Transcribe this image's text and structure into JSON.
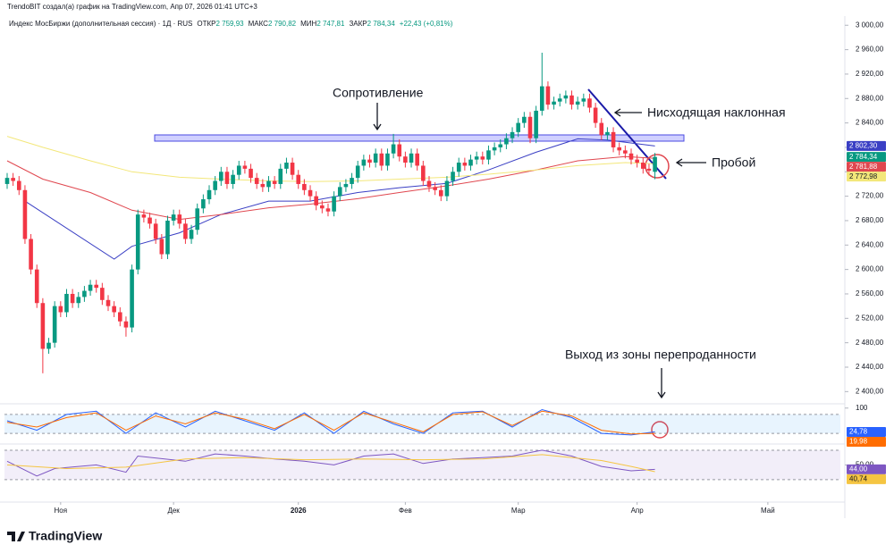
{
  "caption": "TrendoBIT создал(а) график на TradingView.com, Апр 07, 2026 01:41 UTC+3",
  "logo": "TradingView",
  "chart_data": {
    "type": "candlestick",
    "title": "Индекс МосБиржи (дополнительная сессия) · 1Д · RUS",
    "stats": [
      {
        "name": "ОТКР",
        "value": 2759.93,
        "label": "2 759,93"
      },
      {
        "name": "МАКС",
        "value": 2790.82,
        "label": "2 790,82"
      },
      {
        "name": "МИН",
        "value": 2747.81,
        "label": "2 747,81"
      },
      {
        "name": "ЗАКР",
        "value": 2784.34,
        "label": "2 784,34"
      }
    ],
    "change": {
      "value": 22.43,
      "label": "+22,43 (+0,81%)"
    },
    "up_color": "#089981",
    "down_color": "#f23645",
    "open": [
      2740,
      2750,
      2745,
      2730,
      2650,
      2600,
      2545,
      2470,
      2480,
      2540,
      2530,
      2560,
      2545,
      2555,
      2565,
      2575,
      2570,
      2550,
      2540,
      2530,
      2515,
      2505,
      2600,
      2690,
      2685,
      2675,
      2650,
      2625,
      2680,
      2690,
      2675,
      2650,
      2665,
      2700,
      2715,
      2730,
      2745,
      2760,
      2740,
      2755,
      2770,
      2765,
      2750,
      2740,
      2735,
      2745,
      2740,
      2765,
      2775,
      2755,
      2740,
      2730,
      2720,
      2705,
      2700,
      2695,
      2720,
      2735,
      2740,
      2750,
      2770,
      2780,
      2775,
      2790,
      2770,
      2790,
      2805,
      2785,
      2775,
      2790,
      2770,
      2745,
      2735,
      2730,
      2720,
      2745,
      2760,
      2775,
      2770,
      2780,
      2785,
      2780,
      2795,
      2800,
      2805,
      2815,
      2825,
      2840,
      2850,
      2815,
      2860,
      2900,
      2870,
      2875,
      2880,
      2885,
      2870,
      2875,
      2880,
      2865,
      2840,
      2820,
      2825,
      2800,
      2795,
      2790,
      2780,
      2775,
      2765,
      2759.93
    ],
    "high": [
      2758,
      2758,
      2753,
      2738,
      2658,
      2608,
      2553,
      2488,
      2548,
      2548,
      2568,
      2568,
      2563,
      2573,
      2583,
      2583,
      2578,
      2558,
      2548,
      2538,
      2523,
      2608,
      2698,
      2698,
      2693,
      2683,
      2658,
      2688,
      2698,
      2698,
      2683,
      2673,
      2708,
      2723,
      2738,
      2753,
      2768,
      2768,
      2763,
      2778,
      2778,
      2773,
      2758,
      2748,
      2753,
      2753,
      2773,
      2783,
      2783,
      2763,
      2748,
      2738,
      2728,
      2713,
      2708,
      2728,
      2743,
      2748,
      2758,
      2778,
      2788,
      2788,
      2798,
      2798,
      2798,
      2822,
      2813,
      2793,
      2798,
      2798,
      2778,
      2753,
      2743,
      2738,
      2753,
      2768,
      2783,
      2783,
      2788,
      2793,
      2793,
      2803,
      2808,
      2813,
      2823,
      2833,
      2848,
      2858,
      2858,
      2868,
      2955,
      2908,
      2883,
      2888,
      2893,
      2893,
      2883,
      2888,
      2888,
      2873,
      2848,
      2833,
      2833,
      2808,
      2803,
      2798,
      2788,
      2783,
      2773,
      2790.82
    ],
    "low": [
      2732,
      2737,
      2722,
      2642,
      2592,
      2537,
      2430,
      2462,
      2472,
      2522,
      2522,
      2537,
      2537,
      2547,
      2557,
      2562,
      2542,
      2532,
      2522,
      2507,
      2490,
      2497,
      2592,
      2677,
      2667,
      2642,
      2617,
      2617,
      2672,
      2667,
      2642,
      2642,
      2657,
      2692,
      2707,
      2722,
      2737,
      2732,
      2732,
      2747,
      2757,
      2742,
      2732,
      2727,
      2727,
      2732,
      2732,
      2757,
      2747,
      2732,
      2722,
      2712,
      2697,
      2692,
      2687,
      2687,
      2712,
      2727,
      2732,
      2742,
      2762,
      2767,
      2767,
      2762,
      2762,
      2782,
      2777,
      2767,
      2767,
      2762,
      2737,
      2727,
      2722,
      2712,
      2712,
      2737,
      2752,
      2762,
      2762,
      2772,
      2772,
      2772,
      2787,
      2792,
      2797,
      2807,
      2817,
      2832,
      2807,
      2807,
      2852,
      2862,
      2862,
      2867,
      2872,
      2862,
      2862,
      2867,
      2857,
      2832,
      2812,
      2812,
      2792,
      2787,
      2782,
      2772,
      2767,
      2757,
      2754,
      2747.81
    ],
    "close": [
      2750,
      2745,
      2730,
      2650,
      2600,
      2545,
      2470,
      2480,
      2540,
      2530,
      2560,
      2545,
      2555,
      2565,
      2575,
      2570,
      2550,
      2540,
      2530,
      2515,
      2505,
      2600,
      2690,
      2685,
      2675,
      2650,
      2625,
      2680,
      2690,
      2675,
      2650,
      2665,
      2700,
      2715,
      2730,
      2745,
      2760,
      2740,
      2755,
      2770,
      2765,
      2750,
      2740,
      2735,
      2745,
      2740,
      2765,
      2775,
      2755,
      2740,
      2730,
      2720,
      2705,
      2700,
      2695,
      2720,
      2735,
      2740,
      2750,
      2770,
      2780,
      2775,
      2790,
      2770,
      2790,
      2805,
      2785,
      2775,
      2790,
      2770,
      2745,
      2735,
      2730,
      2720,
      2745,
      2760,
      2775,
      2770,
      2780,
      2785,
      2780,
      2795,
      2800,
      2805,
      2815,
      2825,
      2840,
      2850,
      2815,
      2860,
      2900,
      2870,
      2875,
      2880,
      2885,
      2870,
      2875,
      2880,
      2865,
      2840,
      2820,
      2825,
      2800,
      2795,
      2790,
      2780,
      2775,
      2765,
      2762,
      2784.34
    ],
    "close_label": "2 784,34",
    "xlim": [
      -0.45,
      140.2
    ],
    "ylim": [
      2380,
      3015
    ],
    "yticks": [
      {
        "value": 3000,
        "label": "3 000,00"
      },
      {
        "value": 2960,
        "label": "2 960,00"
      },
      {
        "value": 2920,
        "label": "2 920,00"
      },
      {
        "value": 2880,
        "label": "2 880,00"
      },
      {
        "value": 2840,
        "label": "2 840,00"
      },
      {
        "value": 2800,
        "label": "2 800,00"
      },
      {
        "value": 2760,
        "label": "2 760,00"
      },
      {
        "value": 2720,
        "label": "2 720,00"
      },
      {
        "value": 2680,
        "label": "2 680,00"
      },
      {
        "value": 2640,
        "label": "2 640,00"
      },
      {
        "value": 2600,
        "label": "2 600,00"
      },
      {
        "value": 2560,
        "label": "2 560,00"
      },
      {
        "value": 2520,
        "label": "2 520,00"
      },
      {
        "value": 2480,
        "label": "2 480,00"
      },
      {
        "value": 2440,
        "label": "2 440,00"
      },
      {
        "value": 2400,
        "label": "2 400,00"
      }
    ],
    "xticks": [
      {
        "value": 9,
        "label": "Ноя"
      },
      {
        "value": 28,
        "label": "Дек"
      },
      {
        "value": 49,
        "label": "2026",
        "bold": true
      },
      {
        "value": 67,
        "label": "Фев"
      },
      {
        "value": 86,
        "label": "Мар"
      },
      {
        "value": 106,
        "label": "Апр"
      },
      {
        "value": 128,
        "label": "Май"
      }
    ],
    "series": [
      {
        "color": "#3a3fc4",
        "x": [
          3,
          18,
          21,
          29,
          36,
          44,
          51,
          59,
          66,
          74,
          81,
          89,
          96,
          101,
          109
        ],
        "values": [
          2712,
          2617,
          2638,
          2660,
          2690,
          2712,
          2712,
          2726,
          2734,
          2741,
          2763,
          2792,
          2814,
          2812,
          2802.3
        ],
        "value_labels": [
          null,
          null,
          null,
          null,
          null,
          null,
          null,
          null,
          null,
          null,
          null,
          null,
          null,
          null,
          "2 802,30"
        ]
      },
      {
        "color": "#e0474f",
        "x": [
          0,
          6,
          14,
          21,
          29,
          36,
          44,
          51,
          59,
          66,
          74,
          81,
          89,
          96,
          104,
          109
        ],
        "values": [
          2778,
          2748,
          2726,
          2697,
          2682,
          2690,
          2701,
          2707,
          2716,
          2726,
          2737,
          2748,
          2763,
          2778,
          2785,
          2781.88
        ],
        "value_labels": [
          null,
          null,
          null,
          null,
          null,
          null,
          null,
          null,
          null,
          null,
          null,
          null,
          null,
          null,
          null,
          "2 781,88"
        ]
      },
      {
        "color": "#f3e77a",
        "x": [
          0,
          6,
          14,
          21,
          29,
          36,
          44,
          51,
          59,
          66,
          74,
          81,
          89,
          96,
          104,
          109
        ],
        "values": [
          2818,
          2800,
          2778,
          2760,
          2751,
          2748,
          2745,
          2744,
          2745,
          2748,
          2751,
          2756,
          2763,
          2770,
          2775,
          2772.98
        ],
        "value_labels": [
          null,
          null,
          null,
          null,
          null,
          null,
          null,
          null,
          null,
          null,
          null,
          null,
          null,
          null,
          null,
          "2 772,98"
        ]
      }
    ],
    "annotations": [
      "Сопротивление",
      "Нисходящая наклонная",
      "Пробой",
      "Выход из зоны перепроданности"
    ],
    "panels": [
      {
        "ylim": [
          -5,
          105
        ],
        "band": [
          20,
          80
        ],
        "band_color": "rgba(33,150,243,0.10)",
        "yticks": [
          100
        ],
        "series": [
          {
            "color": "#2962ff",
            "x": [
              0,
              5,
              10,
              15,
              20,
              25,
              30,
              35,
              40,
              45,
              50,
              55,
              60,
              65,
              70,
              75,
              80,
              85,
              90,
              95,
              100,
              105,
              109
            ],
            "values": [
              60,
              30,
              80,
              90,
              20,
              85,
              40,
              90,
              60,
              30,
              85,
              20,
              90,
              50,
              20,
              85,
              90,
              40,
              95,
              70,
              20,
              15,
              24.78
            ],
            "value_labels": [
              null,
              null,
              null,
              null,
              null,
              null,
              null,
              null,
              null,
              null,
              null,
              null,
              null,
              null,
              null,
              null,
              null,
              null,
              null,
              null,
              null,
              null,
              "24,78"
            ]
          },
          {
            "color": "#ff6d00",
            "x": [
              0,
              5,
              10,
              15,
              20,
              25,
              30,
              35,
              40,
              45,
              50,
              55,
              60,
              65,
              70,
              75,
              80,
              85,
              90,
              95,
              100,
              105,
              109
            ],
            "values": [
              55,
              40,
              70,
              85,
              30,
              75,
              50,
              85,
              65,
              35,
              80,
              30,
              85,
              55,
              25,
              80,
              88,
              45,
              90,
              75,
              30,
              18,
              19.98
            ],
            "value_labels": [
              null,
              null,
              null,
              null,
              null,
              null,
              null,
              null,
              null,
              null,
              null,
              null,
              null,
              null,
              null,
              null,
              null,
              null,
              null,
              null,
              null,
              null,
              "19,98"
            ]
          }
        ]
      },
      {
        "ylim": [
          25,
          76
        ],
        "band": [
          30,
          70
        ],
        "band_color": "rgba(126,87,194,0.10)",
        "yticks": [
          {
            "value": 50,
            "label": "50,00"
          }
        ],
        "series": [
          {
            "color": "#7e57c2",
            "x": [
              0,
              5,
              8,
              15,
              20,
              22,
              30,
              35,
              40,
              45,
              50,
              55,
              60,
              65,
              70,
              75,
              80,
              85,
              90,
              95,
              100,
              105,
              109
            ],
            "values": [
              55,
              35,
              45,
              50,
              40,
              62,
              55,
              65,
              62,
              58,
              55,
              50,
              62,
              65,
              52,
              58,
              60,
              62,
              70,
              62,
              48,
              42,
              44
            ],
            "value_labels": [
              null,
              null,
              null,
              null,
              null,
              null,
              null,
              null,
              null,
              null,
              null,
              null,
              null,
              null,
              null,
              null,
              null,
              null,
              null,
              null,
              null,
              null,
              "44,00"
            ]
          },
          {
            "color": "#f5c542",
            "x": [
              0,
              10,
              20,
              30,
              40,
              50,
              60,
              70,
              80,
              90,
              100,
              105,
              109
            ],
            "values": [
              50,
              45,
              47,
              58,
              60,
              57,
              58,
              57,
              58,
              64,
              56,
              48,
              40.74
            ],
            "value_labels": [
              null,
              null,
              null,
              null,
              null,
              null,
              null,
              null,
              null,
              null,
              null,
              null,
              "40,74"
            ]
          }
        ]
      }
    ]
  }
}
